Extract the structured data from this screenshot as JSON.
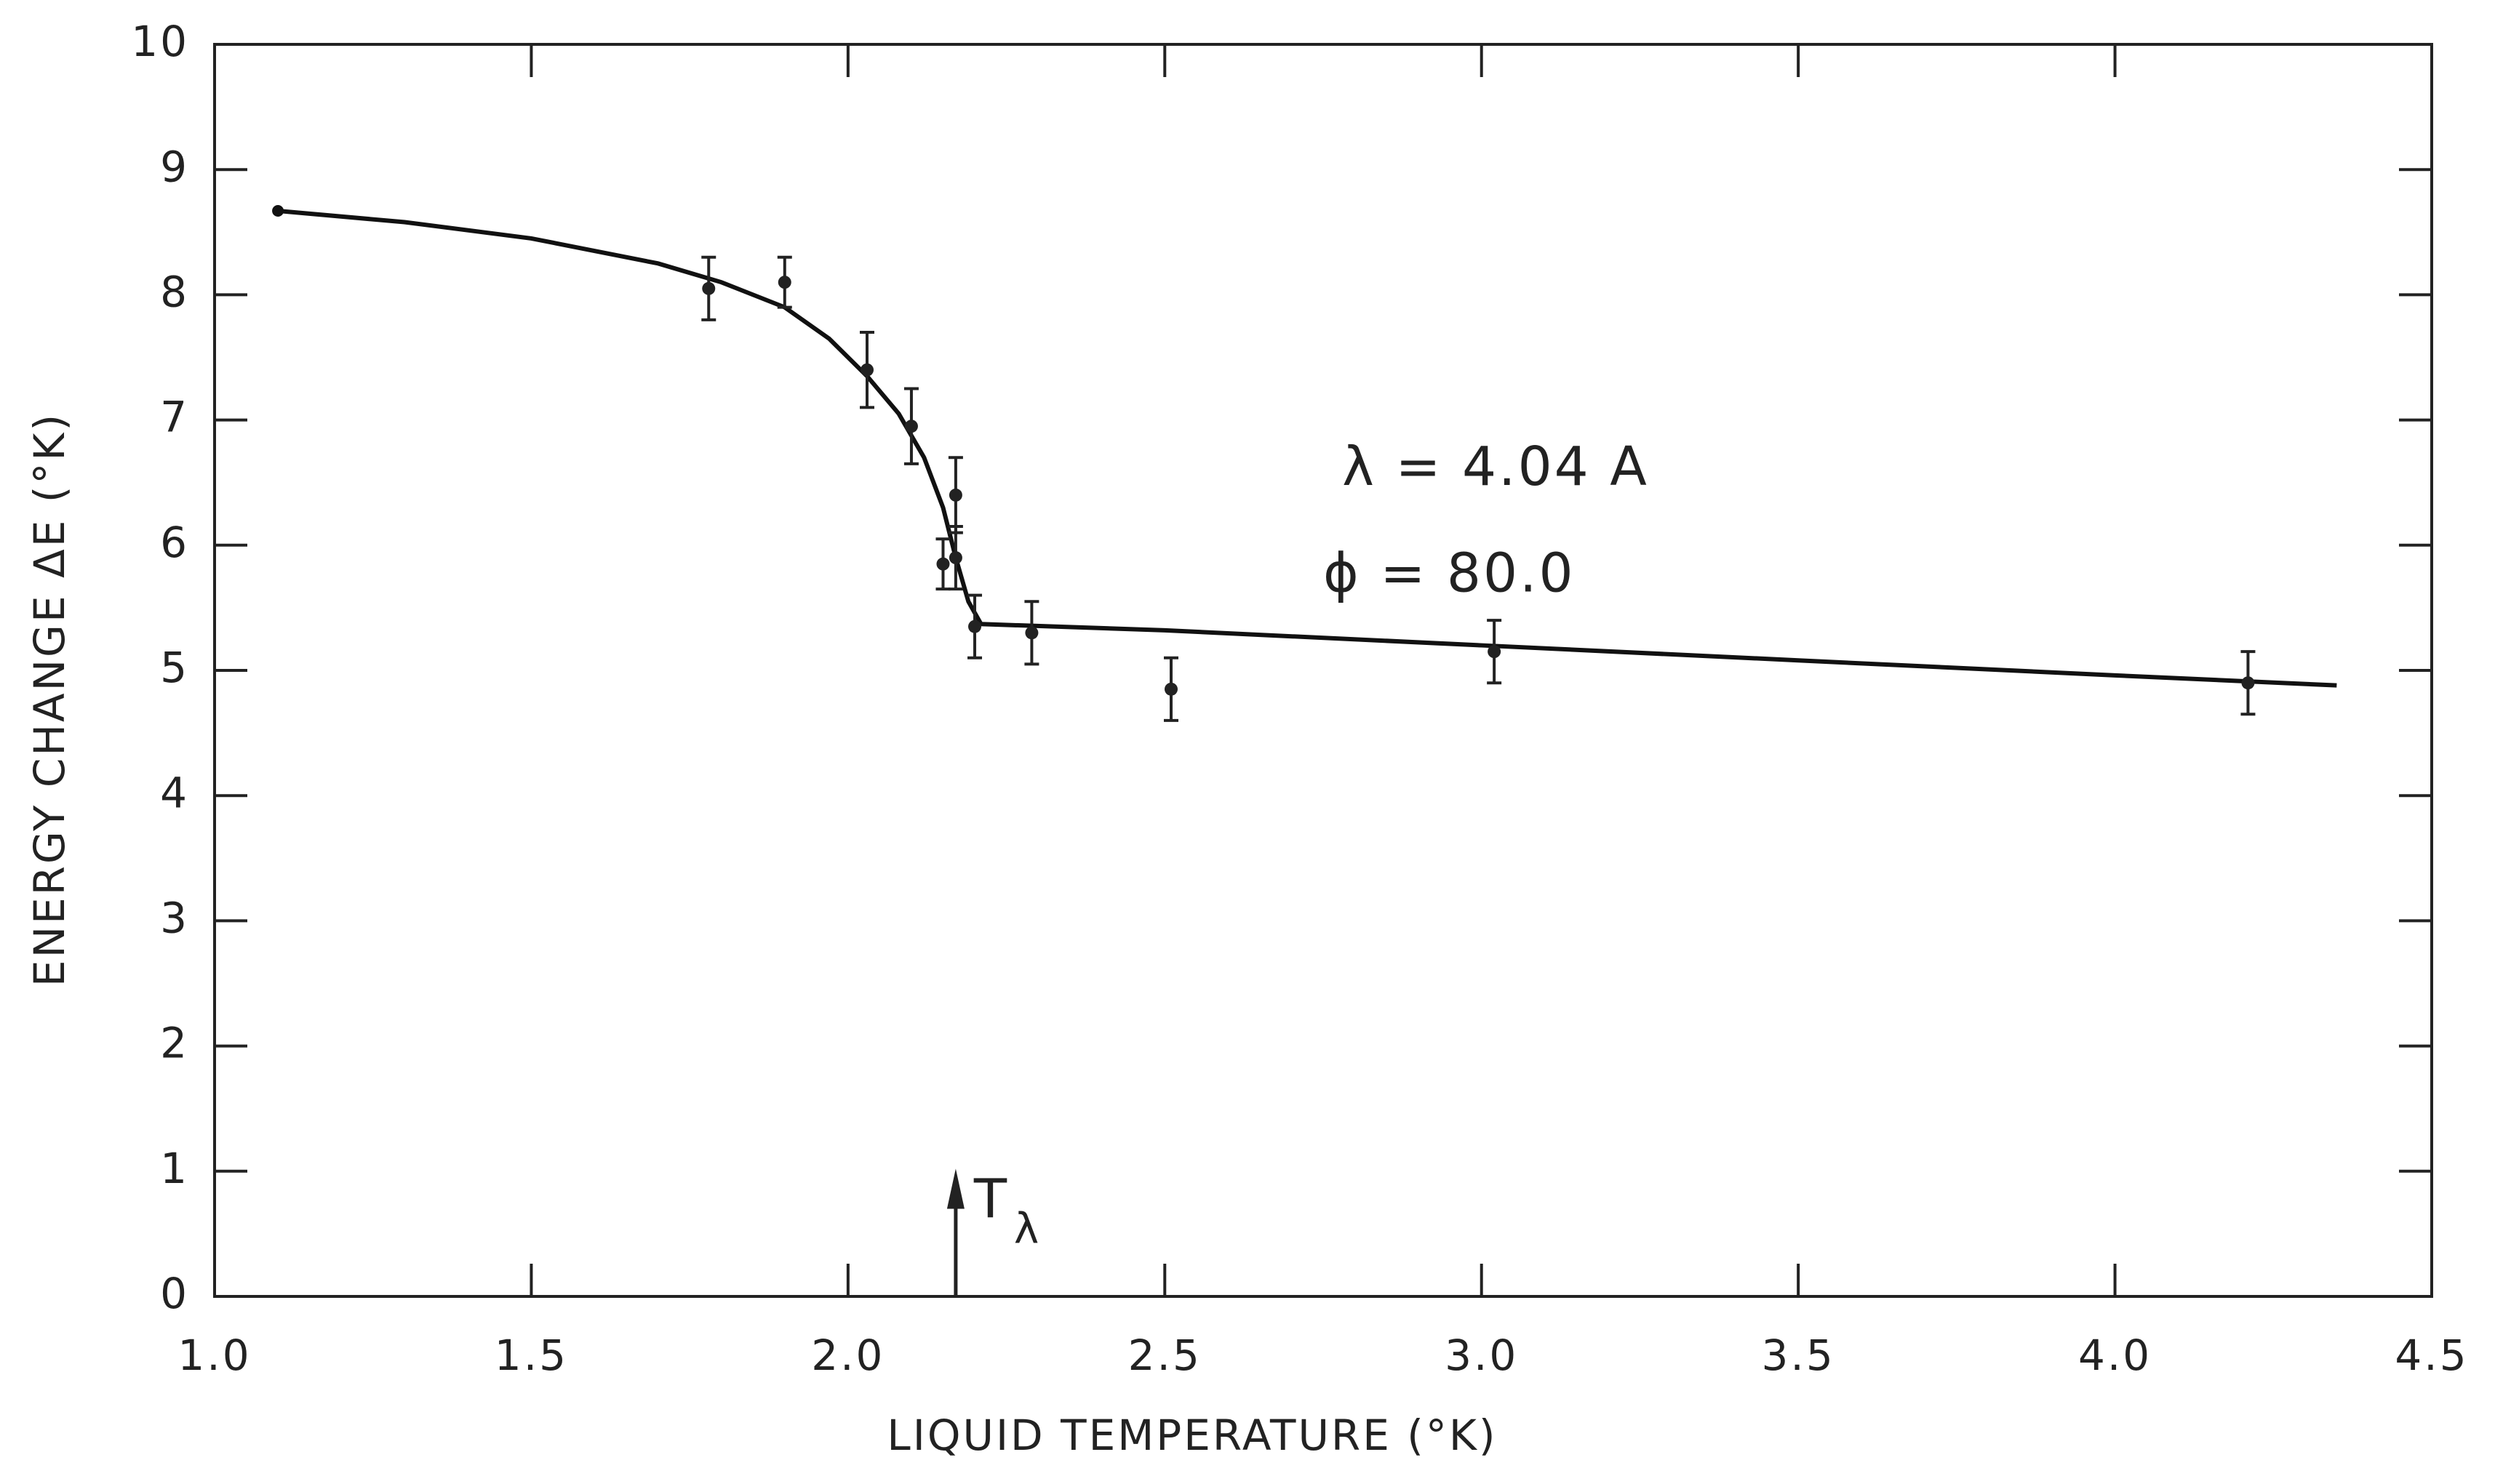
{
  "chart_data": {
    "type": "scatter",
    "x_label": "LIQUID  TEMPERATURE (°K)",
    "y_label": "ENERGY CHANGE  ΔE (°K)",
    "xlim": [
      1.0,
      4.5
    ],
    "ylim": [
      0,
      10
    ],
    "xticks": [
      {
        "value": 1.0,
        "label": "1.0"
      },
      1.5,
      {
        "value": 2.0,
        "label": "2.0"
      },
      2.5,
      {
        "value": 3.0,
        "label": "3.0"
      },
      3.5,
      {
        "value": 4.0,
        "label": "4.0"
      },
      4.5
    ],
    "yticks": [
      0,
      1,
      2,
      3,
      4,
      5,
      6,
      7,
      8,
      9,
      10
    ],
    "points": {
      "color": "#222222",
      "x": [
        1.78,
        1.9,
        2.03,
        2.1,
        2.15,
        2.17,
        2.17,
        2.2,
        2.29,
        2.51,
        3.02,
        4.21
      ],
      "values": [
        8.05,
        8.1,
        7.4,
        6.95,
        5.85,
        6.4,
        5.9,
        5.35,
        5.3,
        4.85,
        5.15,
        4.9
      ],
      "errors": [
        0.25,
        0.2,
        0.3,
        0.3,
        0.2,
        0.3,
        0.25,
        0.25,
        0.25,
        0.25,
        0.25,
        0.25
      ]
    },
    "curve": {
      "color": "#111111",
      "x": [
        1.1,
        1.3,
        1.5,
        1.7,
        1.8,
        1.9,
        1.97,
        2.03,
        2.08,
        2.12,
        2.15,
        2.17,
        2.19,
        2.21,
        2.5,
        3.0,
        3.5,
        4.0,
        4.35
      ],
      "values": [
        8.67,
        8.58,
        8.45,
        8.25,
        8.1,
        7.9,
        7.65,
        7.35,
        7.05,
        6.7,
        6.3,
        5.9,
        5.55,
        5.37,
        5.32,
        5.2,
        5.08,
        4.96,
        4.88
      ]
    },
    "annotations": [
      "λ = 4.04 A",
      "ϕ = 80.0"
    ],
    "lambda_point": {
      "symbol": "T",
      "subscript": "λ",
      "x": 2.17
    }
  }
}
